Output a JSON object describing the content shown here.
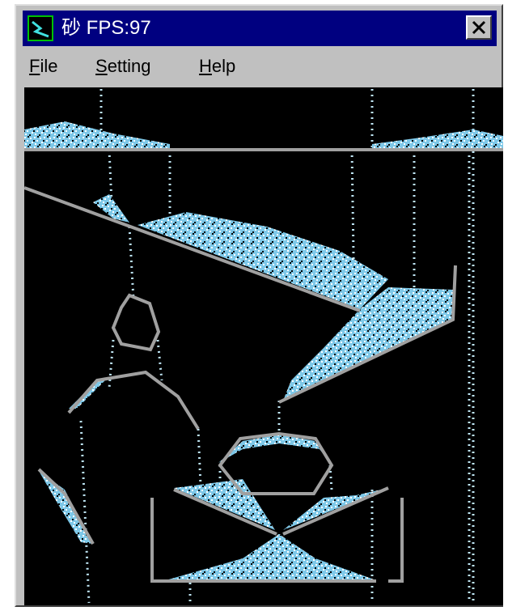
{
  "window": {
    "title": "砂 FPS:97"
  },
  "menu": [
    "File",
    "Setting",
    "Help"
  ]
}
